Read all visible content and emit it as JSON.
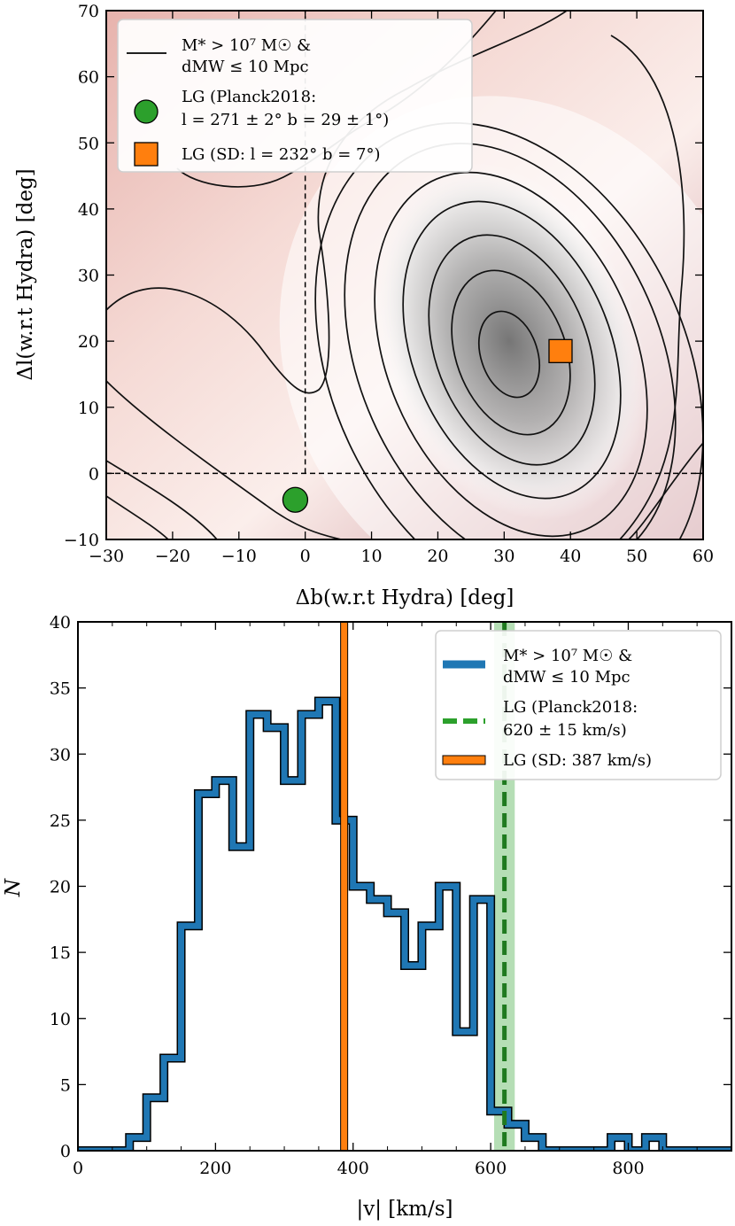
{
  "chart_data": [
    {
      "type": "heatmap",
      "panel": "top",
      "xlabel": "Δb(w.r.t Hydra) [deg]",
      "ylabel": "Δl(w.r.t Hydra) [deg]",
      "xlim": [
        -30,
        60
      ],
      "ylim": [
        -10,
        70
      ],
      "xticks": [
        -30,
        -20,
        -10,
        0,
        10,
        20,
        30,
        40,
        50,
        60
      ],
      "yticks": [
        -10,
        0,
        10,
        20,
        30,
        40,
        50,
        60,
        70
      ],
      "density_peak": {
        "x": 31,
        "y": 17
      },
      "reference_lines": {
        "x": 0,
        "y": 0
      },
      "contour_series": {
        "name": "M* > 10^7 M☉ & d_MW ≤ 10 Mpc",
        "legend_line1": "M* > 10⁷ M☉ &",
        "legend_line2": "dMW ≤ 10 Mpc"
      },
      "points": [
        {
          "name": "LG (Planck2018: l = 271 ± 2° b = 29 ± 1°)",
          "legend_line1": "LG (Planck2018:",
          "legend_line2": "l = 271 ± 2°  b = 29 ± 1°)",
          "x": -1.5,
          "y": -4,
          "marker": "circle",
          "color": "#2ca02c"
        },
        {
          "name": "LG (SD: l = 232° b = 7°)",
          "legend_line1": "LG (SD: l = 232°  b = 7°)",
          "x": 38.5,
          "y": 18.5,
          "marker": "square",
          "color": "#ff7f0e"
        }
      ]
    },
    {
      "type": "histogram",
      "panel": "bottom",
      "xlabel": "|v| [km/s]",
      "ylabel": "N",
      "xlim": [
        0,
        950
      ],
      "ylim": [
        0,
        40
      ],
      "xticks": [
        0,
        200,
        400,
        600,
        800
      ],
      "yticks": [
        0,
        5,
        10,
        15,
        20,
        25,
        30,
        35,
        40
      ],
      "bin_width": 25,
      "bin_start": 0,
      "series": [
        {
          "name": "M* > 10^7 M☉ & d_MW ≤ 10 Mpc",
          "legend_line1": "M* > 10⁷ M☉ &",
          "legend_line2": "dMW ≤ 10 Mpc",
          "color": "#1f77b4",
          "counts": [
            0,
            0,
            0,
            1,
            4,
            7,
            17,
            27,
            28,
            23,
            33,
            32,
            28,
            33,
            34,
            25,
            20,
            19,
            18,
            14,
            17,
            20,
            9,
            19,
            3,
            2,
            1,
            0,
            0,
            0,
            0,
            1,
            0,
            1,
            0,
            0,
            0,
            0
          ]
        }
      ],
      "vlines": [
        {
          "name": "LG (Planck2018: 620 ± 15 km/s)",
          "legend_line1": "LG (Planck2018:",
          "legend_line2": "620 ± 15 km/s)",
          "x": 620,
          "band": [
            605,
            635
          ],
          "color": "#2ca02c",
          "style": "dashed"
        },
        {
          "name": "LG (SD: 387 km/s)",
          "legend_line1": "LG (SD: 387 km/s)",
          "x": 387,
          "color": "#ff7f0e",
          "style": "solid"
        }
      ]
    }
  ]
}
